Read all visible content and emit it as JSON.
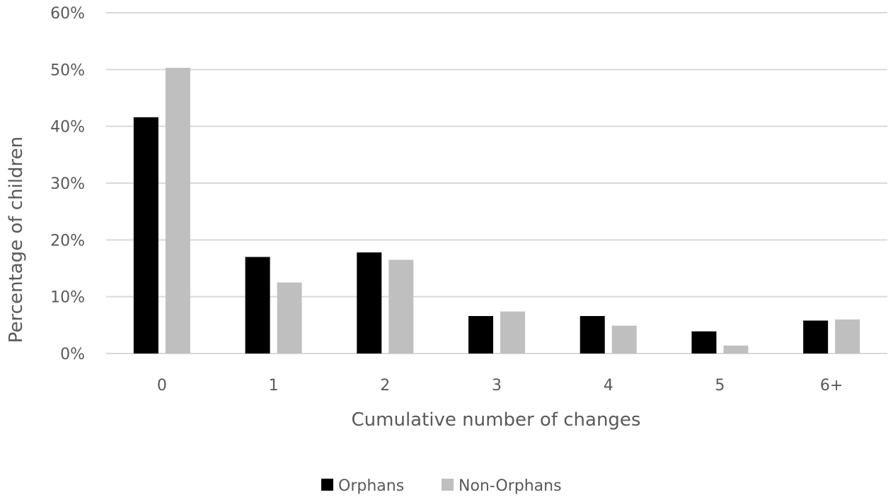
{
  "chart_data": {
    "type": "bar",
    "title": "",
    "xlabel": "Cumulative number of changes",
    "ylabel": "Percentage of children",
    "categories": [
      "0",
      "1",
      "2",
      "3",
      "4",
      "5",
      "6+"
    ],
    "ylim": [
      0,
      60
    ],
    "yticks": [
      "0%",
      "10%",
      "20%",
      "30%",
      "40%",
      "50%",
      "60%"
    ],
    "grid": true,
    "legend_position": "bottom",
    "series": [
      {
        "name": "Orphans",
        "color": "#000000",
        "values": [
          41.6,
          17.0,
          17.8,
          6.6,
          6.6,
          3.9,
          5.8
        ]
      },
      {
        "name": "Non-Orphans",
        "color": "#bfbfbf",
        "values": [
          50.3,
          12.5,
          16.5,
          7.4,
          4.9,
          1.4,
          6.0
        ]
      }
    ]
  }
}
